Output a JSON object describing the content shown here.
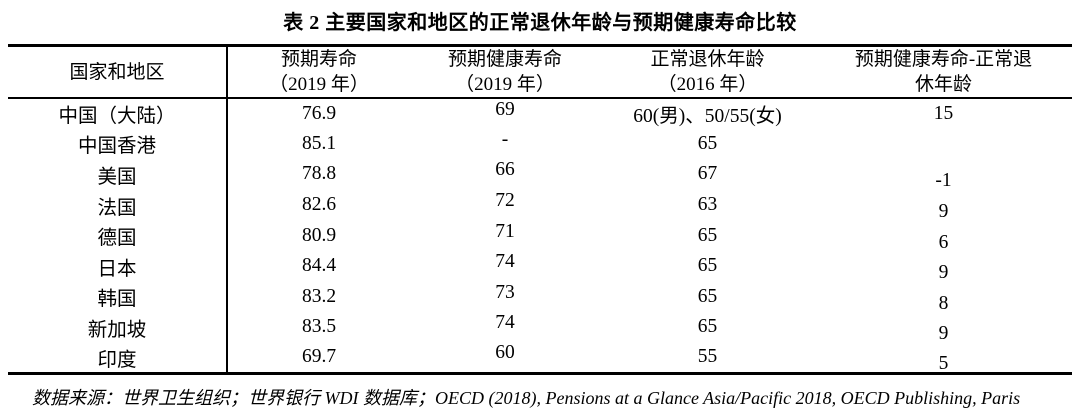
{
  "title": "表 2 主要国家和地区的正常退休年龄与预期健康寿命比较",
  "table": {
    "columns": [
      {
        "line1": "国家和地区",
        "line2": ""
      },
      {
        "line1": "预期寿命",
        "line2": "（2019 年）"
      },
      {
        "line1": "预期健康寿命",
        "line2": "（2019 年）"
      },
      {
        "line1": "正常退休年龄",
        "line2": "（2016 年）"
      },
      {
        "line1": "预期健康寿命-正常退",
        "line2": "休年龄"
      }
    ],
    "rows": [
      {
        "country": "中国（大陆）",
        "life_expectancy_2019": "76.9",
        "healthy_life_expectancy_2019": "69",
        "retirement_age_2016": "60(男)、50/55(女)",
        "healthy_minus_retirement": "15"
      },
      {
        "country": "中国香港",
        "life_expectancy_2019": "85.1",
        "healthy_life_expectancy_2019": "-",
        "retirement_age_2016": "65",
        "healthy_minus_retirement": ""
      },
      {
        "country": "美国",
        "life_expectancy_2019": "78.8",
        "healthy_life_expectancy_2019": "66",
        "retirement_age_2016": "67",
        "healthy_minus_retirement": "-1"
      },
      {
        "country": "法国",
        "life_expectancy_2019": "82.6",
        "healthy_life_expectancy_2019": "72",
        "retirement_age_2016": "63",
        "healthy_minus_retirement": "9"
      },
      {
        "country": "德国",
        "life_expectancy_2019": "80.9",
        "healthy_life_expectancy_2019": "71",
        "retirement_age_2016": "65",
        "healthy_minus_retirement": "6"
      },
      {
        "country": "日本",
        "life_expectancy_2019": "84.4",
        "healthy_life_expectancy_2019": "74",
        "retirement_age_2016": "65",
        "healthy_minus_retirement": "9"
      },
      {
        "country": "韩国",
        "life_expectancy_2019": "83.2",
        "healthy_life_expectancy_2019": "73",
        "retirement_age_2016": "65",
        "healthy_minus_retirement": "8"
      },
      {
        "country": "新加坡",
        "life_expectancy_2019": "83.5",
        "healthy_life_expectancy_2019": "74",
        "retirement_age_2016": "65",
        "healthy_minus_retirement": "9"
      },
      {
        "country": "印度",
        "life_expectancy_2019": "69.7",
        "healthy_life_expectancy_2019": "60",
        "retirement_age_2016": "55",
        "healthy_minus_retirement": "5"
      }
    ]
  },
  "footnote": "数据来源：世界卫生组织；世界银行 WDI 数据库；OECD (2018), Pensions at a Glance Asia/Pacific 2018, OECD Publishing, Paris",
  "colors": {
    "text": "#000000",
    "background": "#ffffff",
    "border": "#000000"
  }
}
